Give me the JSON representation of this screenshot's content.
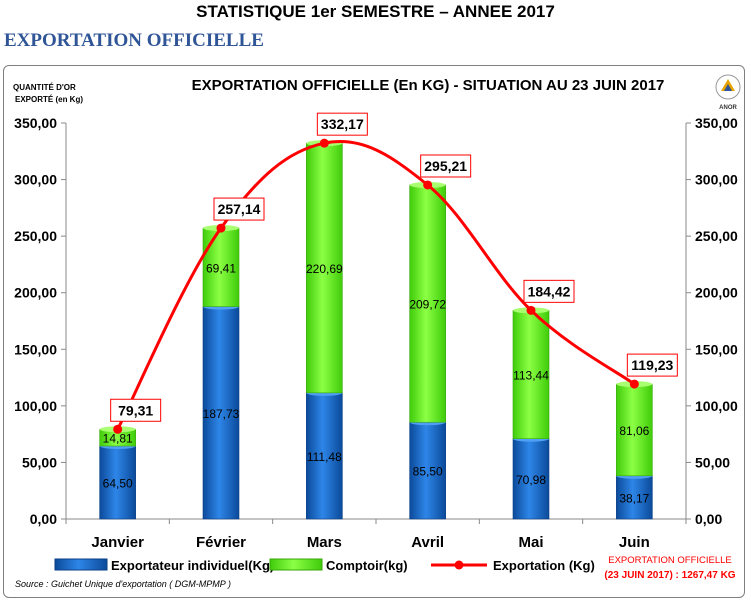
{
  "header": {
    "title": "STATISTIQUE 1er SEMESTRE  – ANNEE 2017",
    "section": "EXPORTATION OFFICIELLE"
  },
  "logo": {
    "text": "ANOR"
  },
  "chart_data": {
    "type": "bar",
    "stacked": true,
    "title": "EXPORTATION OFFICIELLE (En KG)  - SITUATION AU 23 JUIN 2017",
    "ylabel": "QUANTITÉ D'OR EXPORTÉ (en Kg)",
    "ylim": [
      0,
      350
    ],
    "yticks": [
      "0,00",
      "50,00",
      "100,00",
      "150,00",
      "200,00",
      "250,00",
      "300,00",
      "350,00"
    ],
    "ytick_values": [
      0,
      50,
      100,
      150,
      200,
      250,
      300,
      350
    ],
    "categories": [
      "Janvier",
      "Février",
      "Mars",
      "Avril",
      "Mai",
      "Juin"
    ],
    "series": [
      {
        "name": "Exportateur individuel(Kg)",
        "kind": "bar",
        "color": "#1f6fc5",
        "values": [
          64.5,
          187.73,
          111.48,
          85.5,
          70.98,
          38.17
        ],
        "labels": [
          "64,50",
          "187,73",
          "111,48",
          "85,50",
          "70,98",
          "38,17"
        ]
      },
      {
        "name": "Comptoir(kg)",
        "kind": "bar",
        "color": "#66ff1a",
        "values": [
          14.81,
          69.41,
          220.69,
          209.72,
          113.44,
          81.06
        ],
        "labels": [
          "14,81",
          "69,41",
          "220,69",
          "209,72",
          "113,44",
          "81,06"
        ]
      },
      {
        "name": "Exportation (Kg)",
        "kind": "line",
        "color": "#ff0000",
        "values": [
          79.31,
          257.14,
          332.17,
          295.21,
          184.42,
          119.23
        ],
        "labels": [
          "79,31",
          "257,14",
          "332,17",
          "295,21",
          "184,42",
          "119,23"
        ]
      }
    ],
    "legend_position": "bottom",
    "grid": false,
    "total_box": {
      "line1": "EXPORTATION  OFFICIELLE",
      "line2": "(23 JUIN 2017) : 1267,47 KG"
    },
    "source": "Source :   Guichet Unique d'exportation ( DGM-MPMP )"
  }
}
